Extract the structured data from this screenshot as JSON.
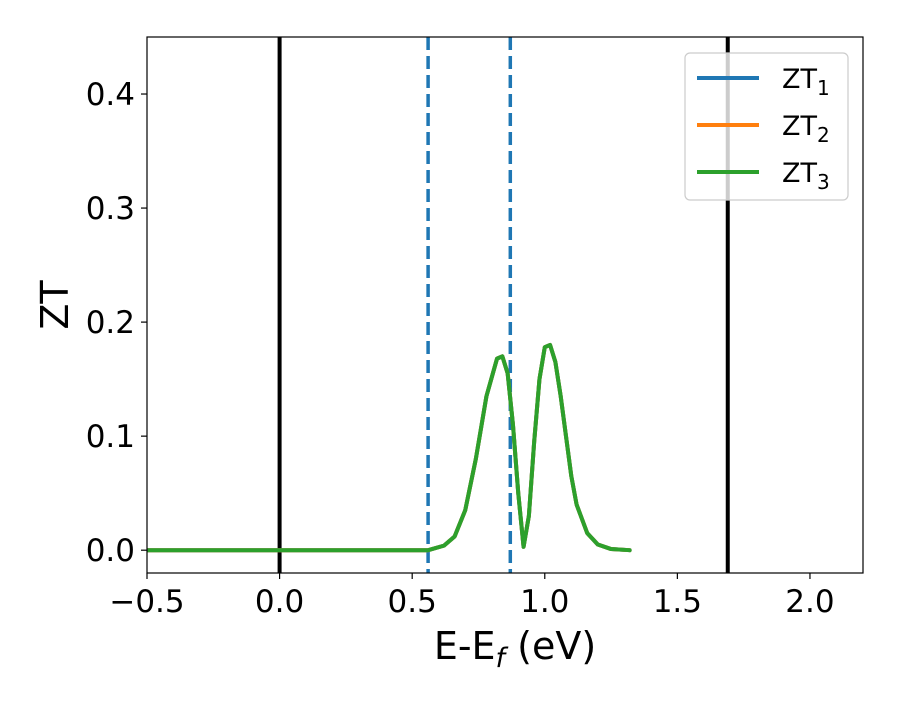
{
  "chart_data": {
    "type": "line",
    "title": "",
    "xlabel": "E-E",
    "xlabel_subscript": "f",
    "xlabel_unit": " (eV)",
    "ylabel": "ZT",
    "xlim": [
      -0.5,
      2.2
    ],
    "ylim": [
      -0.02,
      0.45
    ],
    "x_ticks": [
      {
        "value": -0.5,
        "label": "−0.5"
      },
      {
        "value": 0.0,
        "label": "0.0"
      },
      {
        "value": 0.5,
        "label": "0.5"
      },
      {
        "value": 1.0,
        "label": "1.0"
      },
      {
        "value": 1.5,
        "label": "1.5"
      },
      {
        "value": 2.0,
        "label": "2.0"
      }
    ],
    "y_ticks": [
      {
        "value": 0.0,
        "label": "0.0"
      },
      {
        "value": 0.1,
        "label": "0.1"
      },
      {
        "value": 0.2,
        "label": "0.2"
      },
      {
        "value": 0.3,
        "label": "0.3"
      },
      {
        "value": 0.4,
        "label": "0.4"
      }
    ],
    "grid": false,
    "legend_position": "top-right",
    "vertical_lines": [
      {
        "x": 0.0,
        "style": "solid",
        "color": "#000000"
      },
      {
        "x": 1.69,
        "style": "solid",
        "color": "#000000"
      },
      {
        "x": 0.56,
        "style": "dashed",
        "color": "#1f77b4"
      },
      {
        "x": 0.87,
        "style": "dashed",
        "color": "#1f77b4"
      }
    ],
    "series": [
      {
        "name": "ZT",
        "name_subscript": "1",
        "color": "#1f77b4",
        "x": [
          -0.5,
          0.56,
          0.62,
          0.66,
          0.7,
          0.74,
          0.78,
          0.82,
          0.84,
          0.86,
          0.88,
          0.9,
          0.92,
          0.94,
          0.96,
          0.98,
          1.0,
          1.02,
          1.04,
          1.06,
          1.08,
          1.1,
          1.12,
          1.16,
          1.2,
          1.25,
          1.32
        ],
        "y": [
          0.0,
          0.0,
          0.004,
          0.012,
          0.035,
          0.08,
          0.135,
          0.168,
          0.17,
          0.155,
          0.11,
          0.05,
          0.003,
          0.03,
          0.095,
          0.15,
          0.178,
          0.18,
          0.165,
          0.135,
          0.1,
          0.065,
          0.04,
          0.015,
          0.005,
          0.001,
          0.0
        ]
      },
      {
        "name": "ZT",
        "name_subscript": "2",
        "color": "#ff7f0e",
        "x": [
          -0.5,
          0.56,
          0.62,
          0.66,
          0.7,
          0.74,
          0.78,
          0.82,
          0.84,
          0.86,
          0.88,
          0.9,
          0.92,
          0.94,
          0.96,
          0.98,
          1.0,
          1.02,
          1.04,
          1.06,
          1.08,
          1.1,
          1.12,
          1.16,
          1.2,
          1.25,
          1.32
        ],
        "y": [
          0.0,
          0.0,
          0.004,
          0.012,
          0.035,
          0.08,
          0.135,
          0.168,
          0.17,
          0.155,
          0.11,
          0.05,
          0.003,
          0.03,
          0.095,
          0.15,
          0.178,
          0.18,
          0.165,
          0.135,
          0.1,
          0.065,
          0.04,
          0.015,
          0.005,
          0.001,
          0.0
        ]
      },
      {
        "name": "ZT",
        "name_subscript": "3",
        "color": "#2ca02c",
        "x": [
          -0.5,
          0.56,
          0.62,
          0.66,
          0.7,
          0.74,
          0.78,
          0.82,
          0.84,
          0.86,
          0.88,
          0.9,
          0.92,
          0.94,
          0.96,
          0.98,
          1.0,
          1.02,
          1.04,
          1.06,
          1.08,
          1.1,
          1.12,
          1.16,
          1.2,
          1.25,
          1.32
        ],
        "y": [
          0.0,
          0.0,
          0.004,
          0.012,
          0.035,
          0.08,
          0.135,
          0.168,
          0.17,
          0.155,
          0.11,
          0.05,
          0.003,
          0.03,
          0.095,
          0.15,
          0.178,
          0.18,
          0.165,
          0.135,
          0.1,
          0.065,
          0.04,
          0.015,
          0.005,
          0.001,
          0.0
        ]
      }
    ]
  }
}
